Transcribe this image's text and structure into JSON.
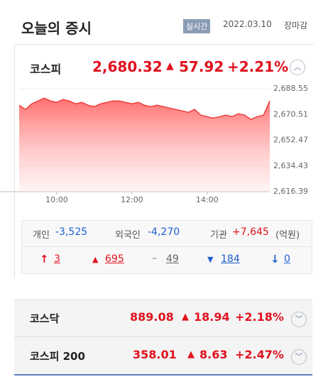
{
  "header": {
    "title": "오늘의 증시",
    "badge": "실시간",
    "date": "2022.03.10",
    "status": "장마감"
  },
  "kospi": {
    "name": "코스피",
    "value": "2,680.32",
    "change": "57.92",
    "rate": "+2.21%"
  },
  "chart_data": {
    "type": "area",
    "color": "#f03c3c",
    "x": [
      "09:00",
      "09:10",
      "09:20",
      "09:30",
      "09:40",
      "09:50",
      "10:00",
      "10:10",
      "10:20",
      "10:30",
      "10:40",
      "10:50",
      "11:00",
      "11:10",
      "11:20",
      "11:30",
      "11:40",
      "11:50",
      "12:00",
      "12:10",
      "12:20",
      "12:30",
      "12:40",
      "12:50",
      "13:00",
      "13:10",
      "13:20",
      "13:30",
      "13:40",
      "13:50",
      "14:00",
      "14:10",
      "14:20",
      "14:30",
      "14:40",
      "14:50",
      "15:00",
      "15:10",
      "15:20",
      "15:30",
      "15:40"
    ],
    "values": [
      2677,
      2674,
      2678,
      2680,
      2682,
      2680,
      2679,
      2681,
      2680,
      2678,
      2679,
      2677,
      2676,
      2678,
      2679,
      2680,
      2680,
      2679,
      2678,
      2679,
      2677,
      2676,
      2677,
      2676,
      2675,
      2674,
      2673,
      2672,
      2674,
      2670,
      2669,
      2668,
      2669,
      2670,
      2669,
      2671,
      2670,
      2667,
      2669,
      2670,
      2680
    ],
    "xlim": [
      "09:00",
      "15:40"
    ],
    "xticks": [
      "10:00",
      "12:00",
      "14:00"
    ],
    "ylim": [
      2616.39,
      2688.55
    ],
    "yticks": [
      {
        "value": 2688.55,
        "label": "2,688.55"
      },
      {
        "value": 2670.51,
        "label": "2,670.51"
      },
      {
        "value": 2652.47,
        "label": "2,652.47"
      },
      {
        "value": 2634.43,
        "label": "2,634.43"
      },
      {
        "value": 2616.39,
        "label": "2,616.39"
      }
    ],
    "grid": true
  },
  "investors": {
    "items": [
      {
        "label": "개인",
        "value": "-3,525"
      },
      {
        "label": "외국인",
        "value": "-4,270"
      },
      {
        "label": "기관",
        "value": "+7,645"
      }
    ],
    "unit": "(억원)"
  },
  "breadth": [
    "3",
    "695",
    "49",
    "184",
    "0"
  ],
  "others": [
    {
      "name": "코스닥",
      "value": "889.08",
      "change": "18.94",
      "rate": "+2.18%"
    },
    {
      "name": "코스피 200",
      "value": "358.01",
      "change": "8.63",
      "rate": "+2.47%"
    }
  ]
}
